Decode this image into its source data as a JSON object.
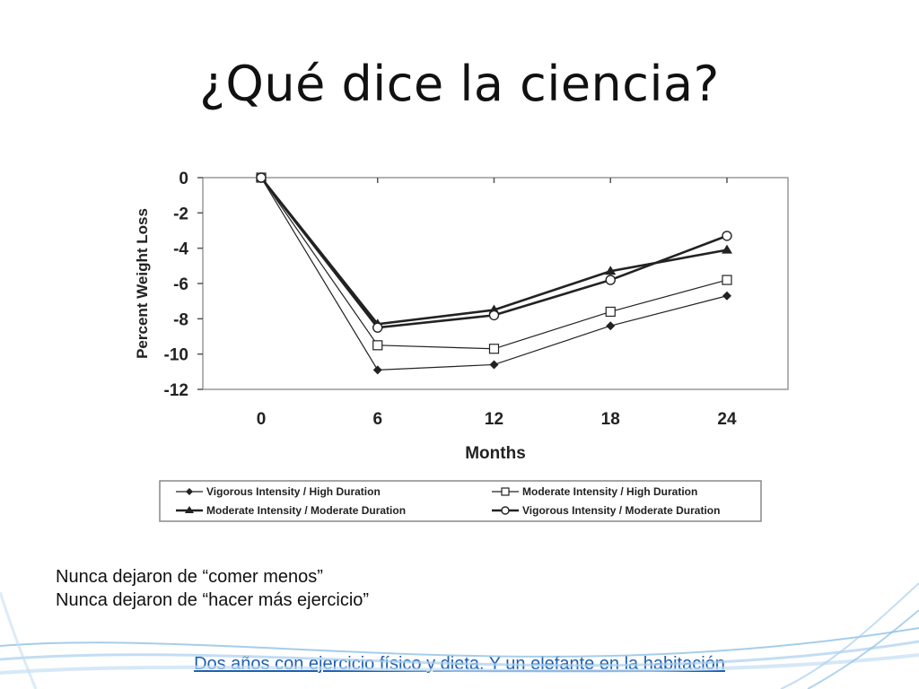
{
  "slide": {
    "title": "¿Qué dice la ciencia?",
    "notes": [
      "Nunca dejaron de “comer menos”",
      "Nunca dejaron de “hacer más ejercicio”"
    ],
    "link_text": "Dos años con ejercicio físico y dieta. Y un elefante en la habitación"
  },
  "colors": {
    "link": "#1f5fae",
    "wave": "#7fb6e0",
    "series": "#222222"
  },
  "chart_data": {
    "type": "line",
    "title": "",
    "xlabel": "Months",
    "ylabel": "Percent Weight Loss",
    "x": [
      0,
      6,
      12,
      18,
      24
    ],
    "xticks": [
      "0",
      "6",
      "12",
      "18",
      "24"
    ],
    "yticks": [
      "0",
      "-2",
      "-4",
      "-6",
      "-8",
      "-10",
      "-12"
    ],
    "ylim": [
      -12,
      0
    ],
    "grid": false,
    "legend_placement": "bottom",
    "series": [
      {
        "name": "Vigorous Intensity / High Duration",
        "marker": "filled-diamond",
        "values": [
          0,
          -10.9,
          -10.6,
          -8.4,
          -6.7
        ]
      },
      {
        "name": "Moderate Intensity / High Duration",
        "marker": "open-square",
        "values": [
          0,
          -9.5,
          -9.7,
          -7.6,
          -5.8
        ]
      },
      {
        "name": "Moderate Intensity / Moderate Duration",
        "marker": "filled-triangle",
        "values": [
          0,
          -8.3,
          -7.5,
          -5.3,
          -4.1
        ]
      },
      {
        "name": "Vigorous Intensity / Moderate Duration",
        "marker": "open-circle",
        "values": [
          0,
          -8.5,
          -7.8,
          -5.8,
          -3.3
        ]
      }
    ]
  }
}
